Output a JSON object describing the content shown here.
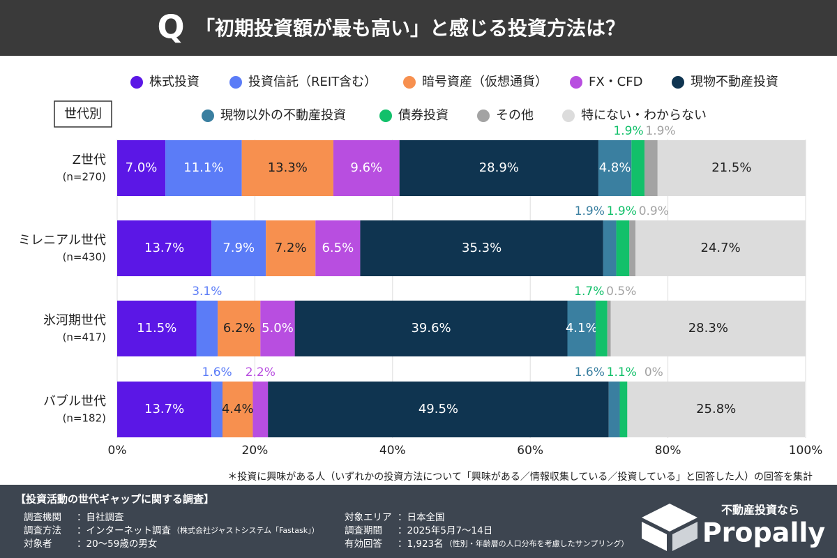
{
  "header": {
    "mark": "Q",
    "title": "「初期投資額が最も高い」と感じる投資方法は？"
  },
  "chart_data": {
    "type": "stacked-bar-horizontal",
    "group_label": "世代別",
    "categories": [
      "Z世代",
      "ミレニアル世代",
      "氷河期世代",
      "バブル世代"
    ],
    "sample_sizes": [
      "(n=270)",
      "(n=430)",
      "(n=417)",
      "(n=182)"
    ],
    "xlim": [
      0,
      100
    ],
    "xticks": [
      {
        "value": 0,
        "label": "0%"
      },
      {
        "value": 20,
        "label": "20%"
      },
      {
        "value": 40,
        "label": "40%"
      },
      {
        "value": 60,
        "label": "60%"
      },
      {
        "value": 80,
        "label": "80%"
      },
      {
        "value": 100,
        "label": "100%"
      }
    ],
    "grid": true,
    "series": [
      {
        "name": "株式投資",
        "color": "#5b17e6",
        "values": [
          7.0,
          13.7,
          11.5,
          13.7
        ],
        "value_labels": [
          "7.0%",
          "13.7%",
          "11.5%",
          "13.7%"
        ]
      },
      {
        "name": "投資信託（REIT含む）",
        "color": "#5b7cf7",
        "values": [
          11.1,
          7.9,
          3.1,
          1.6
        ],
        "value_labels": [
          "11.1%",
          "7.9%",
          "3.1%",
          "1.6%"
        ]
      },
      {
        "name": "暗号資産（仮想通貨）",
        "color": "#f7904f",
        "values": [
          13.3,
          7.2,
          6.2,
          4.4
        ],
        "value_labels": [
          "13.3%",
          "7.2%",
          "6.2%",
          "4.4%"
        ]
      },
      {
        "name": "FX・CFD",
        "color": "#b84ee0",
        "values": [
          9.6,
          6.5,
          5.0,
          2.2
        ],
        "value_labels": [
          "9.6%",
          "6.5%",
          "5.0%",
          "2.2%"
        ]
      },
      {
        "name": "現物不動産投資",
        "color": "#0f3450",
        "values": [
          28.9,
          35.3,
          39.6,
          49.5
        ],
        "value_labels": [
          "28.9%",
          "35.3%",
          "39.6%",
          "49.5%"
        ]
      },
      {
        "name": "現物以外の不動産投資",
        "color": "#3a7fa0",
        "values": [
          4.8,
          1.9,
          4.1,
          1.6
        ],
        "value_labels": [
          "4.8%",
          "1.9%",
          "4.1%",
          "1.6%"
        ]
      },
      {
        "name": "債券投資",
        "color": "#12c06a",
        "values": [
          1.9,
          1.9,
          1.7,
          1.1
        ],
        "value_labels": [
          "1.9%",
          "1.9%",
          "1.7%",
          "1.1%"
        ]
      },
      {
        "name": "その他",
        "color": "#a3a3a3",
        "values": [
          1.9,
          0.9,
          0.5,
          0
        ],
        "value_labels": [
          "1.9%",
          "0.9%",
          "0.5%",
          "0%"
        ]
      },
      {
        "name": "特にない・わからない",
        "color": "#dcdcdc",
        "values": [
          21.5,
          24.7,
          28.3,
          25.8
        ],
        "value_labels": [
          "21.5%",
          "24.7%",
          "28.3%",
          "25.8%"
        ]
      }
    ],
    "footnote": "＊投資に興味がある人（いずれかの投資方法について「興味がある／情報収集している／投資している」と回答した人）の回答を集計"
  },
  "footer": {
    "title": "【投資活動の世代ギャップに関する調査】",
    "rows": [
      [
        "調査機関",
        "：自社調査"
      ],
      [
        "調査方法",
        "：インターネット調査",
        "（株式会社ジャストシステム「Fastask」）"
      ],
      [
        "対象者",
        "：20〜59歳の男女"
      ],
      [
        "対象エリア",
        "：日本全国"
      ],
      [
        "調査期間",
        "：2025年5月7〜14日"
      ],
      [
        "有効回答",
        "：1,923名",
        "（性別・年齢層の人口分布を考慮したサンプリング）"
      ]
    ],
    "logo_tagline": "不動産投資なら",
    "logo_name": "Propally"
  }
}
